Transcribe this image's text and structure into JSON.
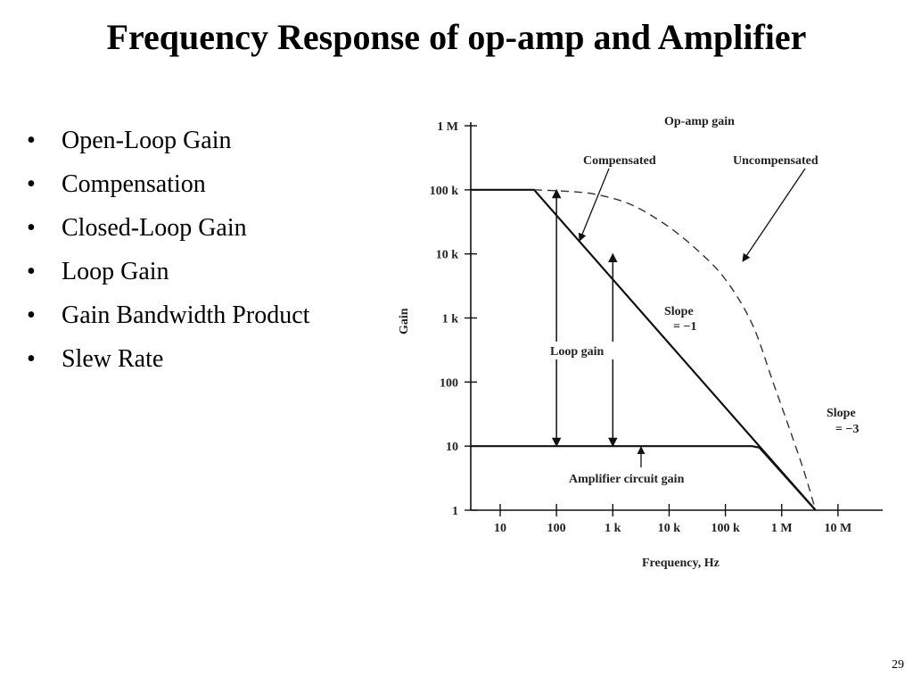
{
  "title": "Frequency Response of op-amp and Amplifier",
  "bullets": [
    "Open-Loop Gain",
    "Compensation",
    "Closed-Loop Gain",
    "Loop Gain",
    "Gain Bandwidth Product",
    "Slew Rate"
  ],
  "page_number": "29",
  "chart_data": {
    "type": "line",
    "xlabel": "Frequency, Hz",
    "ylabel": "Gain",
    "x_scale": "log",
    "y_scale": "log",
    "xlim": [
      3,
      30000000
    ],
    "ylim": [
      1,
      1000000
    ],
    "x_ticks": [
      {
        "value": 10,
        "label": "10"
      },
      {
        "value": 100,
        "label": "100"
      },
      {
        "value": 1000,
        "label": "1 k"
      },
      {
        "value": 10000,
        "label": "10 k"
      },
      {
        "value": 100000,
        "label": "100 k"
      },
      {
        "value": 1000000,
        "label": "1 M"
      },
      {
        "value": 10000000,
        "label": "10 M"
      }
    ],
    "y_ticks": [
      {
        "value": 1,
        "label": "1"
      },
      {
        "value": 10,
        "label": "10"
      },
      {
        "value": 100,
        "label": "100"
      },
      {
        "value": 1000,
        "label": "1 k"
      },
      {
        "value": 10000,
        "label": "10 k"
      },
      {
        "value": 100000,
        "label": "100 k"
      },
      {
        "value": 1000000,
        "label": "1 M"
      }
    ],
    "series": [
      {
        "name": "Compensated",
        "style": "solid",
        "color": "#111111",
        "points": [
          [
            3,
            100000
          ],
          [
            40,
            100000
          ],
          [
            4000000,
            1
          ]
        ]
      },
      {
        "name": "Uncompensated",
        "style": "dashed",
        "color": "#333333",
        "points": [
          [
            40,
            100000
          ],
          [
            150,
            95000
          ],
          [
            500,
            85000
          ],
          [
            2000,
            60000
          ],
          [
            8000,
            30000
          ],
          [
            30000,
            12000
          ],
          [
            100000,
            4000
          ],
          [
            300000,
            800
          ],
          [
            700000,
            100
          ],
          [
            1500000,
            15
          ],
          [
            2500000,
            4
          ],
          [
            4000000,
            1
          ]
        ]
      },
      {
        "name": "Amplifier circuit gain",
        "style": "solid",
        "color": "#111111",
        "points": [
          [
            3,
            10
          ],
          [
            300000,
            10
          ],
          [
            400000,
            9.5
          ],
          [
            4000000,
            1
          ]
        ]
      }
    ],
    "annotations": {
      "op_amp_gain": "Op-amp gain",
      "compensated": "Compensated",
      "uncompensated": "Uncompensated",
      "slope_minus1_line1": "Slope",
      "slope_minus1_line2": "= −1",
      "slope_minus3_line1": "Slope",
      "slope_minus3_line2": "= −3",
      "loop_gain": "Loop gain",
      "amplifier_circuit_gain": "Amplifier circuit gain"
    },
    "loop_gain_arrows": [
      {
        "x": 100,
        "y_from": 10,
        "y_to": 100000
      },
      {
        "x": 1000,
        "y_from": 10,
        "y_to": 10000
      }
    ],
    "grid": false
  }
}
